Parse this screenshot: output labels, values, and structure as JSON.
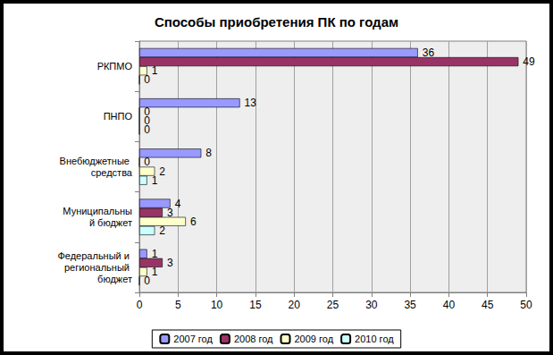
{
  "chart_data": {
    "type": "bar",
    "title": "Способы приобретения ПК по годам",
    "orientation": "horizontal",
    "categories": [
      "Федеральный и региональный бюджет",
      "Муниципальный бюджет",
      "Внебюджетные средства",
      "ПНПО",
      "РКПМО"
    ],
    "series": [
      {
        "name": "2007 год",
        "color": "#9999FF",
        "values": [
          1,
          4,
          8,
          13,
          36
        ]
      },
      {
        "name": "2008 год",
        "color": "#993366",
        "values": [
          3,
          3,
          0,
          0,
          49
        ]
      },
      {
        "name": "2009 год",
        "color": "#FFFFCC",
        "values": [
          1,
          6,
          2,
          0,
          1
        ]
      },
      {
        "name": "2010 год",
        "color": "#CCFFFF",
        "values": [
          0,
          2,
          1,
          0,
          0
        ]
      }
    ],
    "xlim": [
      0,
      50
    ],
    "xticks": [
      0,
      5,
      10,
      15,
      20,
      25,
      30,
      35,
      40,
      45,
      50
    ],
    "grid": true,
    "data_labels": true,
    "legend": "bottom"
  }
}
